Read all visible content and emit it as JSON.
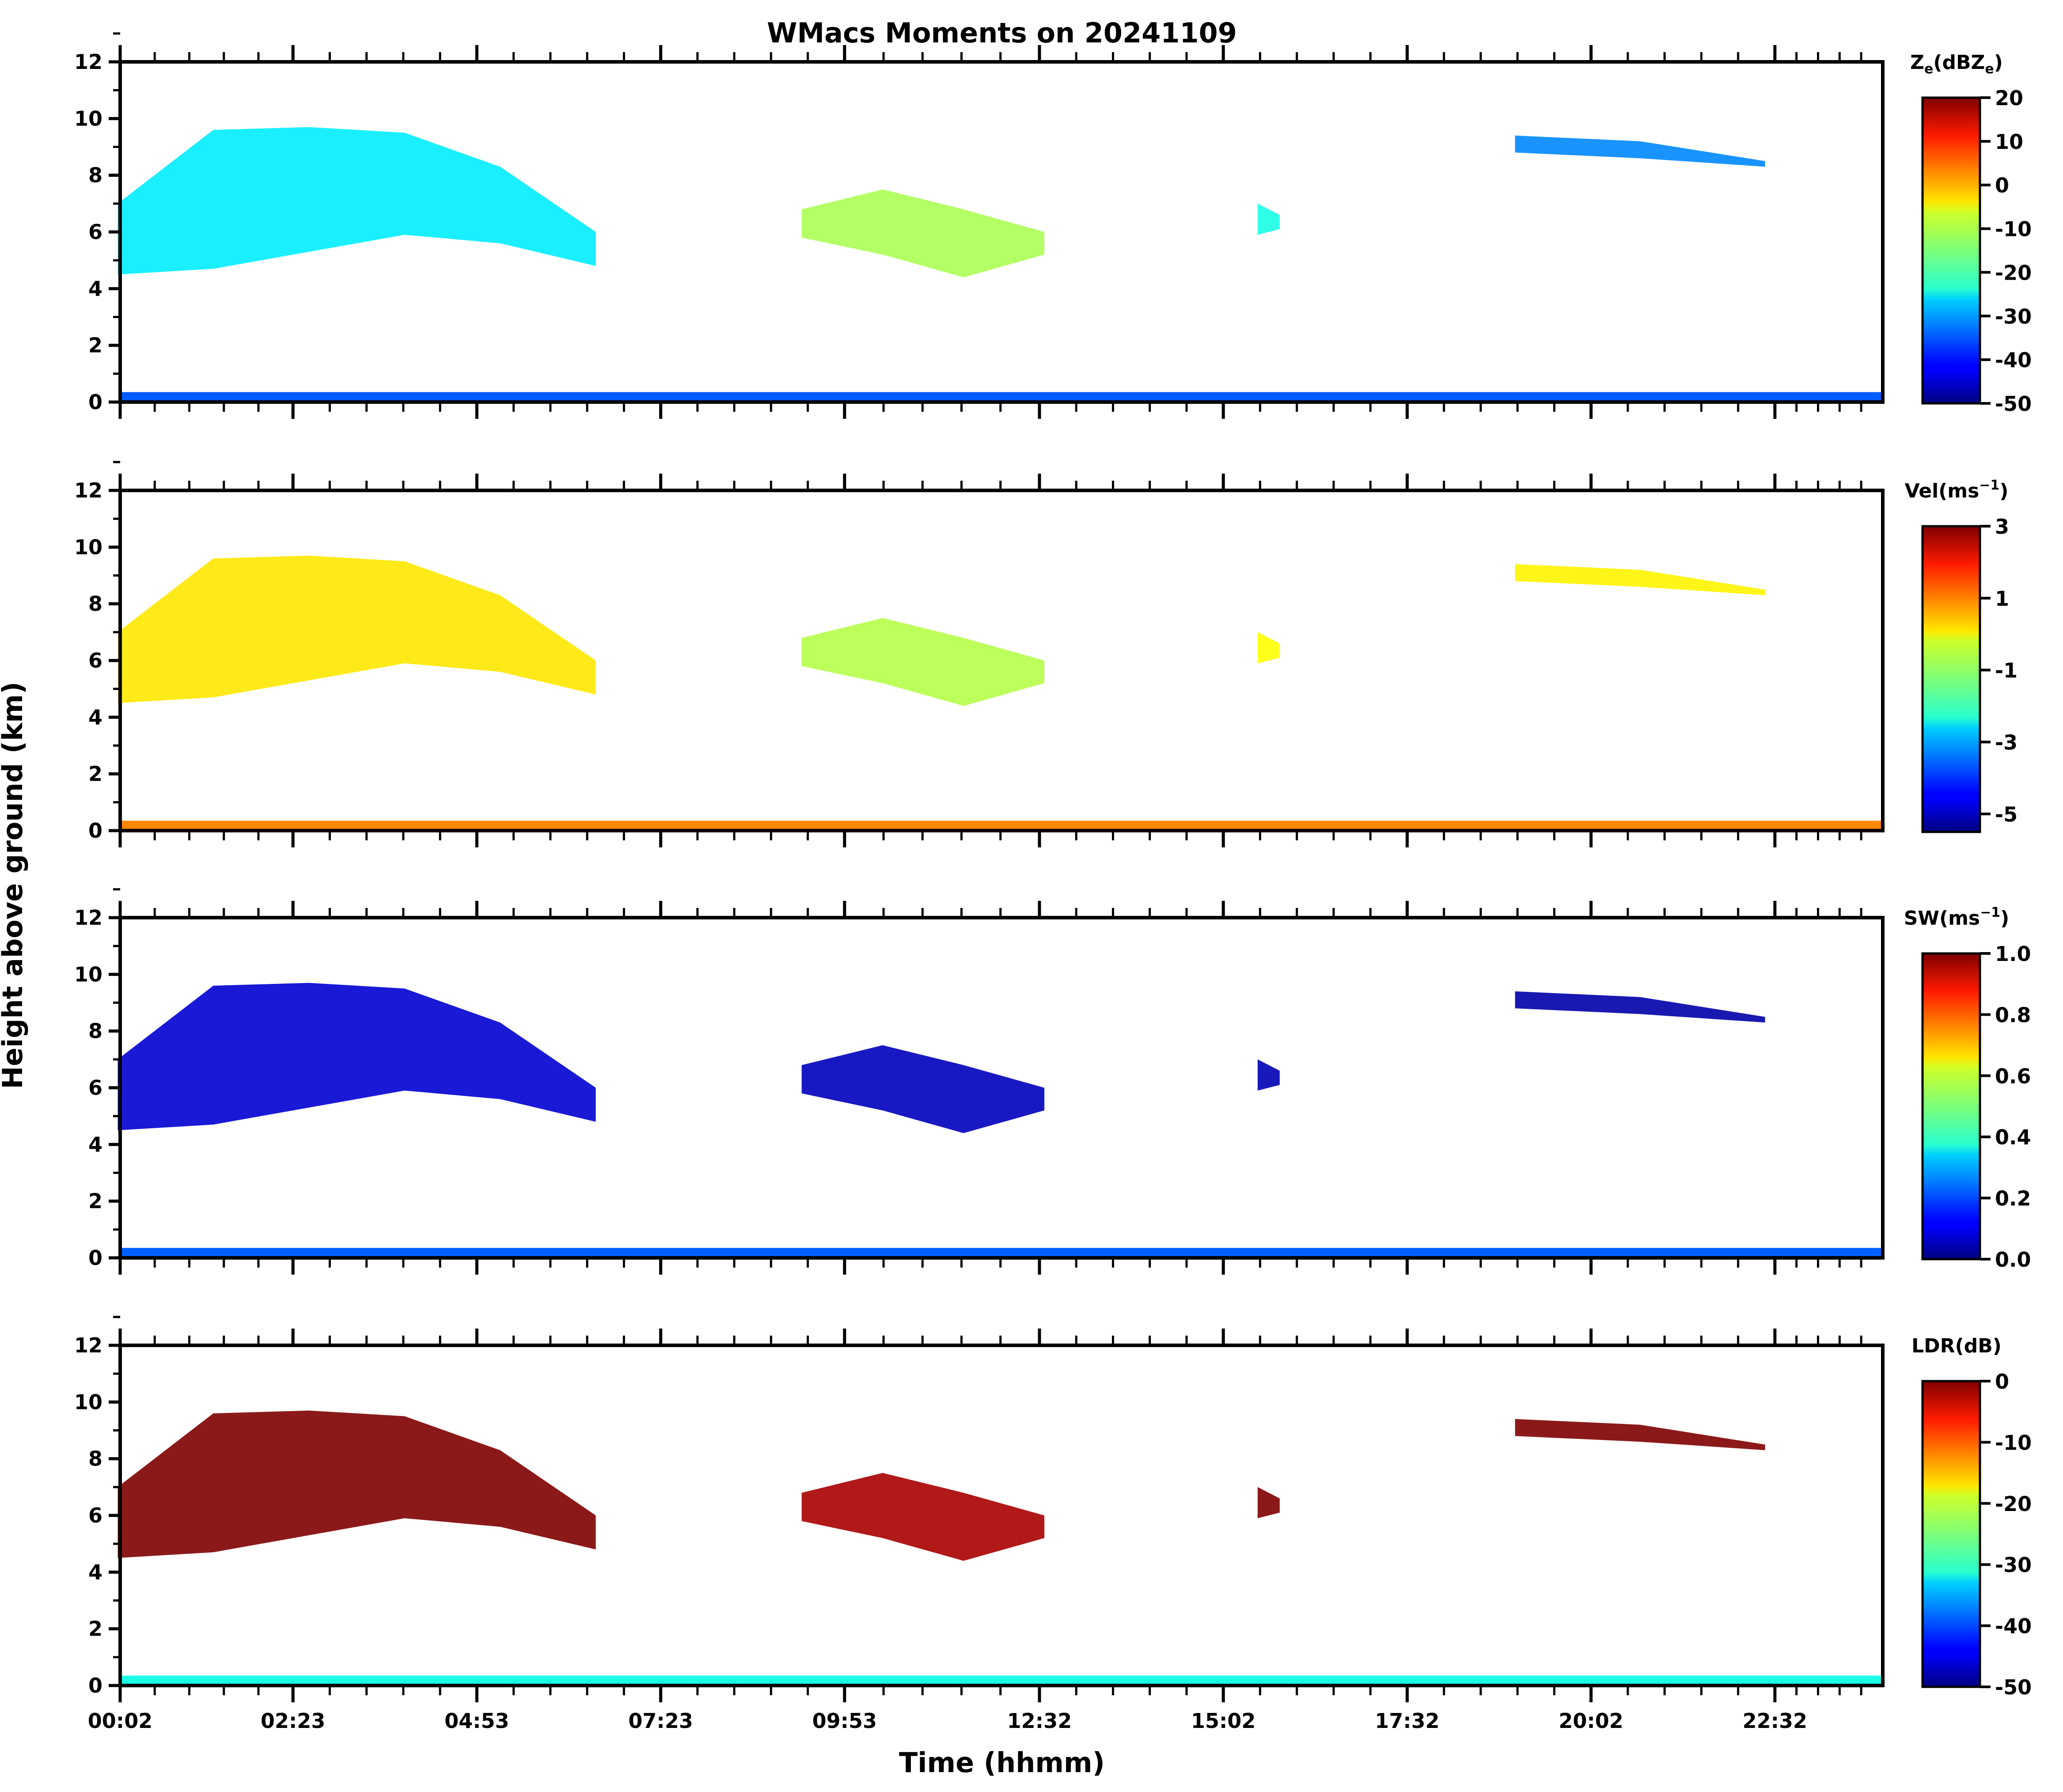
{
  "colors": {
    "background": "#ffffff",
    "axes": "#000000"
  },
  "chart_data": {
    "type": "heatmap",
    "title": "WMacs Moments on 20241109",
    "xlabel": "Time (hhmm)",
    "ylabel": "Height above ground (km)",
    "xlim": [
      0.0333,
      24.0
    ],
    "x_ticks": [
      0.0333,
      2.3833,
      4.8833,
      7.3833,
      9.8833,
      12.5333,
      15.0333,
      17.5333,
      20.0333,
      22.5333
    ],
    "x_tick_labels": [
      "00:02",
      "02:23",
      "04:53",
      "07:23",
      "09:53",
      "12:32",
      "15:02",
      "17:32",
      "20:02",
      "22:32"
    ],
    "ylim": [
      0,
      12
    ],
    "y_ticks": [
      0,
      2,
      4,
      6,
      8,
      10,
      12
    ],
    "y_tick_labels": [
      "0",
      "2",
      "4",
      "6",
      "8",
      "10",
      "12"
    ],
    "colormap": "jet",
    "panels": [
      {
        "name": "reflectivity",
        "colorbar_title": "Z",
        "colorbar_title_sub": "e",
        "colorbar_title_mid": "(dBZ",
        "colorbar_title_end": ")",
        "colorbar_range": [
          -50,
          20
        ],
        "colorbar_ticks": [
          20,
          10,
          0,
          -10,
          -20,
          -30,
          -40,
          -50
        ],
        "colorbar_tick_labels": [
          "20",
          "10",
          "0",
          "-10",
          "-20",
          "-30",
          "-40",
          "-50"
        ],
        "cloud_layers": [
          {
            "t_start": 0.0,
            "t_end": 6.5,
            "base_km": [
              4.5,
              4.7,
              5.3,
              5.9,
              5.6,
              4.8
            ],
            "top_km": [
              7.0,
              9.6,
              9.7,
              9.5,
              8.3,
              6.0
            ],
            "value": -25
          },
          {
            "t_start": 9.3,
            "t_end": 12.6,
            "base_km": [
              5.8,
              5.2,
              4.4,
              5.2
            ],
            "top_km": [
              6.8,
              7.5,
              6.8,
              6.0
            ],
            "value": -12
          },
          {
            "t_start": 15.5,
            "t_end": 15.8,
            "base_km": [
              5.9,
              6.1
            ],
            "top_km": [
              7.0,
              6.6
            ],
            "value": -22
          },
          {
            "t_start": 19.0,
            "t_end": 22.4,
            "base_km": [
              8.8,
              8.6,
              8.3
            ],
            "top_km": [
              9.4,
              9.2,
              8.5
            ],
            "value": -32
          }
        ],
        "surface_layer": {
          "top_km": 0.35,
          "value": -35
        }
      },
      {
        "name": "velocity",
        "colorbar_title": "Vel(ms",
        "colorbar_title_sup": "−1",
        "colorbar_title_end": ")",
        "colorbar_range": [
          -5.5,
          3
        ],
        "colorbar_ticks": [
          3,
          1,
          -1,
          -3,
          -5
        ],
        "colorbar_tick_labels": [
          "3",
          "1",
          "-1",
          "-3",
          "-5"
        ],
        "cloud_layers": [
          {
            "t_start": 0.0,
            "t_end": 6.5,
            "base_km": [
              4.5,
              4.7,
              5.3,
              5.9,
              5.6,
              4.8
            ],
            "top_km": [
              7.0,
              9.6,
              9.7,
              9.5,
              8.3,
              6.0
            ],
            "value": 0.0
          },
          {
            "t_start": 9.3,
            "t_end": 12.6,
            "base_km": [
              5.8,
              5.2,
              4.4,
              5.2
            ],
            "top_km": [
              6.8,
              7.5,
              6.8,
              6.0
            ],
            "value": -0.8
          },
          {
            "t_start": 15.5,
            "t_end": 15.8,
            "base_km": [
              5.9,
              6.1
            ],
            "top_km": [
              7.0,
              6.6
            ],
            "value": -0.2
          },
          {
            "t_start": 19.0,
            "t_end": 22.4,
            "base_km": [
              8.8,
              8.6,
              8.3
            ],
            "top_km": [
              9.4,
              9.2,
              8.5
            ],
            "value": -0.1
          }
        ],
        "surface_layer": {
          "top_km": 0.35,
          "value": 0.8
        }
      },
      {
        "name": "spectrum-width",
        "colorbar_title": "SW(ms",
        "colorbar_title_sup": "−1",
        "colorbar_title_end": ")",
        "colorbar_range": [
          0.0,
          1.0
        ],
        "colorbar_ticks": [
          1.0,
          0.8,
          0.6,
          0.4,
          0.2,
          0.0
        ],
        "colorbar_tick_labels": [
          "1.0",
          "0.8",
          "0.6",
          "0.4",
          "0.2",
          "0.0"
        ],
        "cloud_layers": [
          {
            "t_start": 0.0,
            "t_end": 6.5,
            "base_km": [
              4.5,
              4.7,
              5.3,
              5.9,
              5.6,
              4.8
            ],
            "top_km": [
              7.0,
              9.6,
              9.7,
              9.5,
              8.3,
              6.0
            ],
            "value": 0.08
          },
          {
            "t_start": 9.3,
            "t_end": 12.6,
            "base_km": [
              5.8,
              5.2,
              4.4,
              5.2
            ],
            "top_km": [
              6.8,
              7.5,
              6.8,
              6.0
            ],
            "value": 0.06
          },
          {
            "t_start": 15.5,
            "t_end": 15.8,
            "base_km": [
              5.9,
              6.1
            ],
            "top_km": [
              7.0,
              6.6
            ],
            "value": 0.05
          },
          {
            "t_start": 19.0,
            "t_end": 22.4,
            "base_km": [
              8.8,
              8.6,
              8.3
            ],
            "top_km": [
              9.4,
              9.2,
              8.5
            ],
            "value": 0.04
          }
        ],
        "surface_layer": {
          "top_km": 0.35,
          "value": 0.22
        }
      },
      {
        "name": "ldr",
        "colorbar_title": "LDR(dB)",
        "colorbar_range": [
          -50,
          0
        ],
        "colorbar_ticks": [
          0,
          -10,
          -20,
          -30,
          -40,
          -50
        ],
        "colorbar_tick_labels": [
          "0",
          "-10",
          "-20",
          "-30",
          "-40",
          "-50"
        ],
        "cloud_layers": [
          {
            "t_start": 0.0,
            "t_end": 6.5,
            "base_km": [
              4.5,
              4.7,
              5.3,
              5.9,
              5.6,
              4.8
            ],
            "top_km": [
              7.0,
              9.6,
              9.7,
              9.5,
              8.3,
              6.0
            ],
            "value": 0
          },
          {
            "t_start": 9.3,
            "t_end": 12.6,
            "base_km": [
              5.8,
              5.2,
              4.4,
              5.2
            ],
            "top_km": [
              6.8,
              7.5,
              6.8,
              6.0
            ],
            "value": -2
          },
          {
            "t_start": 15.5,
            "t_end": 15.8,
            "base_km": [
              5.9,
              6.1
            ],
            "top_km": [
              7.0,
              6.6
            ],
            "value": 0
          },
          {
            "t_start": 19.0,
            "t_end": 22.4,
            "base_km": [
              8.8,
              8.6,
              8.3
            ],
            "top_km": [
              9.4,
              9.2,
              8.5
            ],
            "value": 0
          }
        ],
        "surface_layer": {
          "top_km": 0.35,
          "value": -30
        }
      }
    ]
  }
}
